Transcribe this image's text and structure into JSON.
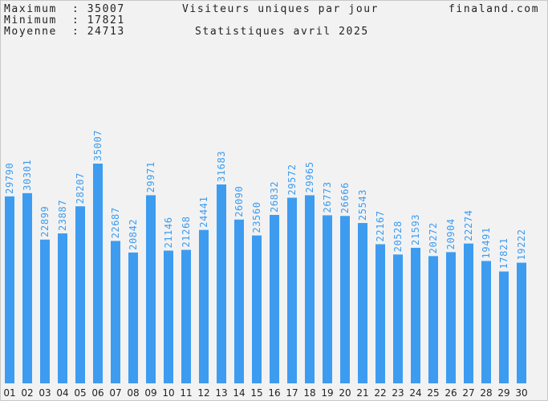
{
  "header": {
    "max_label": "Maximum  :",
    "max_value": "35007",
    "min_label": "Minimum  :",
    "min_value": "17821",
    "avg_label": "Moyenne  :",
    "avg_value": "24713",
    "title": "Visiteurs uniques par jour",
    "site": "finaland.com",
    "subtitle": "Statistiques avril 2025"
  },
  "colors": {
    "bar": "#3d9cf0",
    "label": "#3d9cf0",
    "axis_text": "#222222",
    "background": "#f2f2f2"
  },
  "chart_data": {
    "type": "bar",
    "title": "Visiteurs uniques par jour",
    "subtitle": "Statistiques avril 2025",
    "categories": [
      "01",
      "02",
      "03",
      "04",
      "05",
      "06",
      "07",
      "08",
      "09",
      "10",
      "11",
      "12",
      "13",
      "14",
      "15",
      "16",
      "17",
      "18",
      "19",
      "20",
      "21",
      "22",
      "23",
      "24",
      "25",
      "26",
      "27",
      "28",
      "29",
      "30"
    ],
    "values": [
      29790,
      30301,
      22899,
      23887,
      28207,
      35007,
      22687,
      20842,
      29971,
      21146,
      21268,
      24441,
      31683,
      26090,
      23560,
      26832,
      29572,
      29965,
      26773,
      26666,
      25543,
      22167,
      20528,
      21593,
      20272,
      20904,
      22274,
      19491,
      17821,
      19222
    ],
    "ylim": [
      0,
      35007
    ],
    "grid": false,
    "legend": "none",
    "value_labels": "vertical above bars"
  }
}
